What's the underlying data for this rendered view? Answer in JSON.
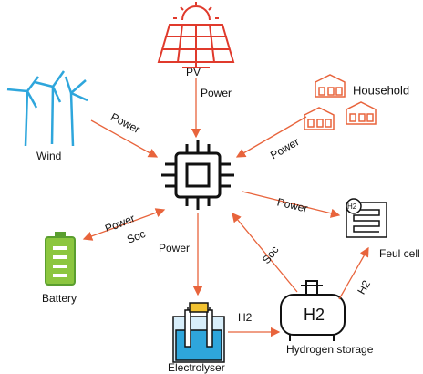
{
  "nodes": [
    {
      "id": "pv",
      "label": "PV"
    },
    {
      "id": "wind",
      "label": "Wind"
    },
    {
      "id": "household",
      "label": "Household"
    },
    {
      "id": "battery",
      "label": "Battery"
    },
    {
      "id": "electrolyser",
      "label": "Electrolyser"
    },
    {
      "id": "storage",
      "label": "Hydrogen storage",
      "icon_text": "H2"
    },
    {
      "id": "fuelcell",
      "label": "Feul cell",
      "icon_text": "H2"
    }
  ],
  "edges": [
    {
      "from": "pv",
      "to": "controller",
      "label": "Power"
    },
    {
      "from": "wind",
      "to": "controller",
      "label": "Power"
    },
    {
      "from": "household",
      "to": "controller",
      "label": "Power"
    },
    {
      "from": "battery",
      "to": "controller",
      "labels": [
        "Power",
        "Soc"
      ]
    },
    {
      "from": "controller",
      "to": "electrolyser",
      "label": "Power"
    },
    {
      "from": "electrolyser",
      "to": "storage",
      "label": "H2"
    },
    {
      "from": "storage",
      "to": "controller",
      "label": "Soc"
    },
    {
      "from": "controller",
      "to": "fuelcell",
      "label": "Power"
    },
    {
      "from": "storage",
      "to": "fuelcell",
      "label": "H2"
    }
  ]
}
